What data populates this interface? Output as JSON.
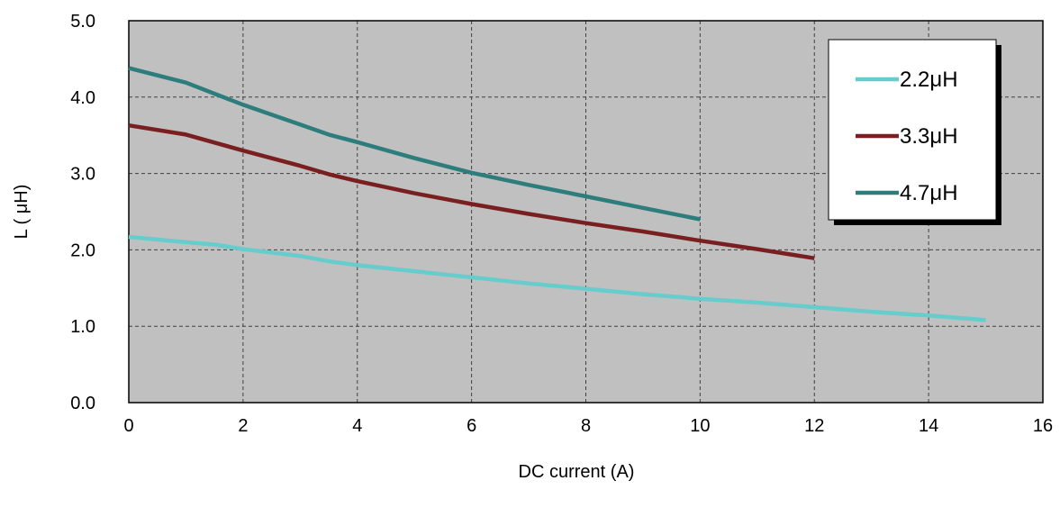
{
  "chart_data": {
    "type": "line",
    "title": "",
    "xlabel": "DC current  (A)",
    "ylabel": "L  ( μH)",
    "xlim": [
      0,
      16
    ],
    "ylim": [
      0,
      5
    ],
    "x_ticks": [
      "0",
      "2",
      "4",
      "6",
      "8",
      "10",
      "12",
      "14",
      "16"
    ],
    "y_ticks": [
      "0.0",
      "1.0",
      "2.0",
      "3.0",
      "4.0",
      "5.0"
    ],
    "grid": true,
    "plot_background": "#c0c0c0",
    "legend_position": "top-right",
    "series": [
      {
        "name": "2.2μH",
        "color": "#66cccc",
        "points": [
          [
            0,
            2.17
          ],
          [
            1,
            2.1
          ],
          [
            1.5,
            2.07
          ],
          [
            2,
            2.01
          ],
          [
            3,
            1.92
          ],
          [
            3.5,
            1.85
          ],
          [
            4,
            1.8
          ],
          [
            5,
            1.72
          ],
          [
            6,
            1.64
          ],
          [
            7,
            1.56
          ],
          [
            8,
            1.49
          ],
          [
            9,
            1.42
          ],
          [
            10,
            1.36
          ],
          [
            11,
            1.31
          ],
          [
            12,
            1.25
          ],
          [
            13,
            1.19
          ],
          [
            14,
            1.14
          ],
          [
            15,
            1.08
          ]
        ]
      },
      {
        "name": "3.3μH",
        "color": "#7a1f1f",
        "points": [
          [
            0,
            3.63
          ],
          [
            1,
            3.51
          ],
          [
            2,
            3.3
          ],
          [
            3,
            3.1
          ],
          [
            3.5,
            2.99
          ],
          [
            4,
            2.9
          ],
          [
            5,
            2.74
          ],
          [
            6,
            2.6
          ],
          [
            7,
            2.47
          ],
          [
            8,
            2.35
          ],
          [
            9,
            2.24
          ],
          [
            10,
            2.12
          ],
          [
            11,
            2.01
          ],
          [
            12,
            1.89
          ]
        ]
      },
      {
        "name": "4.7μH",
        "color": "#2e7d7d",
        "points": [
          [
            0,
            4.38
          ],
          [
            1,
            4.19
          ],
          [
            2,
            3.9
          ],
          [
            3,
            3.64
          ],
          [
            3.5,
            3.51
          ],
          [
            4,
            3.41
          ],
          [
            5,
            3.2
          ],
          [
            6,
            3.01
          ],
          [
            7,
            2.85
          ],
          [
            8,
            2.7
          ],
          [
            9,
            2.55
          ],
          [
            10,
            2.4
          ]
        ]
      }
    ]
  }
}
